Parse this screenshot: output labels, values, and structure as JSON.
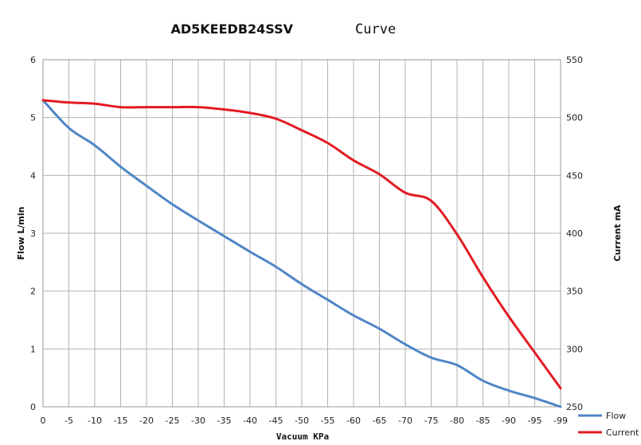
{
  "chart_data": {
    "type": "line",
    "title_bold": "AD5KEEDB24SSV",
    "title_rest": "Curve",
    "xlabel": "Vacuum KPa",
    "ylabel_left": "Flow L/min",
    "ylabel_right": "Current mA",
    "x": [
      0,
      -5,
      -10,
      -15,
      -20,
      -25,
      -30,
      -35,
      -40,
      -45,
      -50,
      -55,
      -60,
      -65,
      -70,
      -75,
      -80,
      -85,
      -90,
      -95,
      -99
    ],
    "x_tick_labels": [
      "0",
      "-5",
      "-10",
      "-15",
      "-20",
      "-25",
      "-30",
      "-35",
      "-40",
      "-45",
      "-50",
      "-55",
      "-60",
      "-65",
      "-70",
      "-75",
      "-80",
      "-85",
      "-90",
      "-95",
      "-99"
    ],
    "y_left_ticks": [
      "0",
      "1",
      "2",
      "3",
      "4",
      "5",
      "6"
    ],
    "y_right_ticks": [
      "250",
      "300",
      "350",
      "400",
      "450",
      "500",
      "550"
    ],
    "y_left_range": [
      0,
      6
    ],
    "y_right_range": [
      250,
      550
    ],
    "grid": true,
    "legend_position": "bottom-right",
    "series": [
      {
        "name": "Flow",
        "axis": "left",
        "color": "#4f86c6",
        "values": [
          5.3,
          4.82,
          4.52,
          4.15,
          3.82,
          3.5,
          3.22,
          2.95,
          2.68,
          2.42,
          2.12,
          1.85,
          1.58,
          1.35,
          1.08,
          0.85,
          0.72,
          0.45,
          0.28,
          0.15,
          0.0
        ]
      },
      {
        "name": "Current",
        "axis": "right",
        "color": "#e21b23",
        "values": [
          515,
          513,
          512,
          509,
          509,
          509,
          509,
          507,
          504,
          499,
          489,
          478,
          463,
          451,
          435,
          428,
          399,
          362,
          328,
          297,
          266
        ]
      }
    ]
  }
}
